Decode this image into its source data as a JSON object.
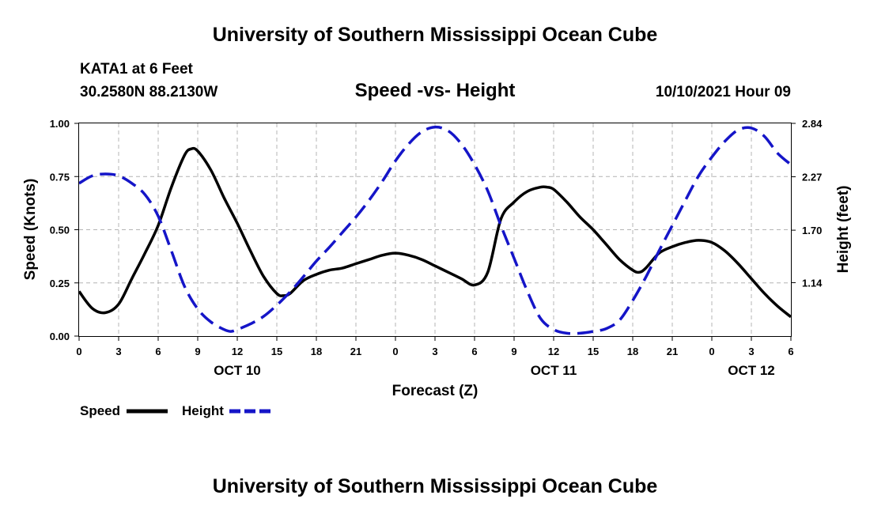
{
  "page": {
    "title_top": "University of Southern Mississippi Ocean Cube",
    "title_bottom": "University of Southern Mississippi Ocean Cube",
    "station": "KATA1 at 6 Feet",
    "coords": "30.2580N  88.2130W",
    "chart_title": "Speed -vs- Height",
    "datetime": "10/10/2021 Hour 09"
  },
  "chart_data": {
    "type": "line",
    "title": "Speed -vs- Height",
    "xlabel": "Forecast (Z)",
    "ylabel": "Speed (Knots)",
    "y2label": "Height (feet)",
    "x_unit": "hours from Oct 10 00Z",
    "xlim": [
      0,
      54
    ],
    "ylim": [
      0.0,
      1.0
    ],
    "y2lim": [
      0.57,
      2.84
    ],
    "x_tick_values": [
      0,
      3,
      6,
      9,
      12,
      15,
      18,
      21,
      24,
      27,
      30,
      33,
      36,
      39,
      42,
      45,
      48,
      51,
      54
    ],
    "x_tick_labels": [
      "0",
      "3",
      "6",
      "9",
      "12",
      "15",
      "18",
      "21",
      "0",
      "3",
      "6",
      "9",
      "12",
      "15",
      "18",
      "21",
      "0",
      "3",
      "6"
    ],
    "y_tick_values": [
      0.0,
      0.25,
      0.5,
      0.75,
      1.0
    ],
    "y_tick_labels": [
      "0.00",
      "0.25",
      "0.50",
      "0.75",
      "1.00"
    ],
    "y2_tick_values": [
      1.14,
      1.7,
      2.27,
      2.84
    ],
    "y2_tick_labels": [
      "1.14",
      "1.70",
      "2.27",
      "2.84"
    ],
    "day_labels": [
      {
        "x": 12,
        "label": "OCT 10"
      },
      {
        "x": 36,
        "label": "OCT 11"
      },
      {
        "x": 51,
        "label": "OCT 12"
      }
    ],
    "grid": true,
    "series": [
      {
        "name": "Speed",
        "axis": "left",
        "color": "#000000",
        "style": "solid",
        "x": [
          0,
          1,
          2,
          3,
          4,
          5,
          6,
          7,
          8,
          8.5,
          9,
          10,
          11,
          12,
          13,
          14,
          15,
          15.5,
          16,
          17,
          18,
          19,
          20,
          21,
          22,
          23,
          24,
          25,
          26,
          27,
          28,
          29,
          30,
          31,
          32,
          33,
          34,
          35,
          35.5,
          36,
          37,
          38,
          39,
          40,
          41,
          42,
          42.5,
          43,
          44,
          45,
          46,
          47,
          48,
          49,
          50,
          51,
          52,
          53,
          54
        ],
        "values": [
          0.21,
          0.13,
          0.11,
          0.15,
          0.27,
          0.39,
          0.52,
          0.7,
          0.85,
          0.88,
          0.87,
          0.78,
          0.65,
          0.53,
          0.4,
          0.28,
          0.2,
          0.19,
          0.2,
          0.26,
          0.29,
          0.31,
          0.32,
          0.34,
          0.36,
          0.38,
          0.39,
          0.38,
          0.36,
          0.33,
          0.3,
          0.27,
          0.24,
          0.3,
          0.55,
          0.63,
          0.68,
          0.7,
          0.7,
          0.69,
          0.63,
          0.56,
          0.5,
          0.43,
          0.36,
          0.31,
          0.3,
          0.32,
          0.39,
          0.42,
          0.44,
          0.45,
          0.44,
          0.4,
          0.34,
          0.27,
          0.2,
          0.14,
          0.09
        ]
      },
      {
        "name": "Height",
        "axis": "right",
        "color": "#1515c8",
        "style": "dashed",
        "x": [
          0,
          1,
          2,
          3,
          4,
          5,
          6,
          7,
          8,
          9,
          10,
          11,
          11.5,
          12,
          13,
          14,
          15,
          16,
          17,
          18,
          19,
          20,
          21,
          22,
          23,
          24,
          25,
          26,
          27,
          28,
          29,
          30,
          31,
          32,
          33,
          34,
          35,
          36,
          37,
          38,
          39,
          40,
          41,
          42,
          43,
          44,
          45,
          46,
          47,
          48,
          49,
          50,
          51,
          52,
          53,
          54
        ],
        "values": [
          2.2,
          2.28,
          2.3,
          2.28,
          2.2,
          2.08,
          1.85,
          1.48,
          1.1,
          0.86,
          0.72,
          0.64,
          0.62,
          0.64,
          0.7,
          0.78,
          0.9,
          1.04,
          1.2,
          1.37,
          1.52,
          1.68,
          1.84,
          2.02,
          2.22,
          2.44,
          2.62,
          2.75,
          2.8,
          2.76,
          2.62,
          2.4,
          2.12,
          1.75,
          1.4,
          1.05,
          0.76,
          0.64,
          0.6,
          0.6,
          0.62,
          0.65,
          0.74,
          0.95,
          1.2,
          1.48,
          1.75,
          2.02,
          2.28,
          2.48,
          2.65,
          2.77,
          2.79,
          2.7,
          2.52,
          2.4
        ]
      }
    ],
    "legend": [
      {
        "label": "Speed",
        "color": "#000000",
        "style": "solid"
      },
      {
        "label": "Height",
        "color": "#1515c8",
        "style": "dashed"
      }
    ],
    "legend_position": "bottom-left"
  }
}
